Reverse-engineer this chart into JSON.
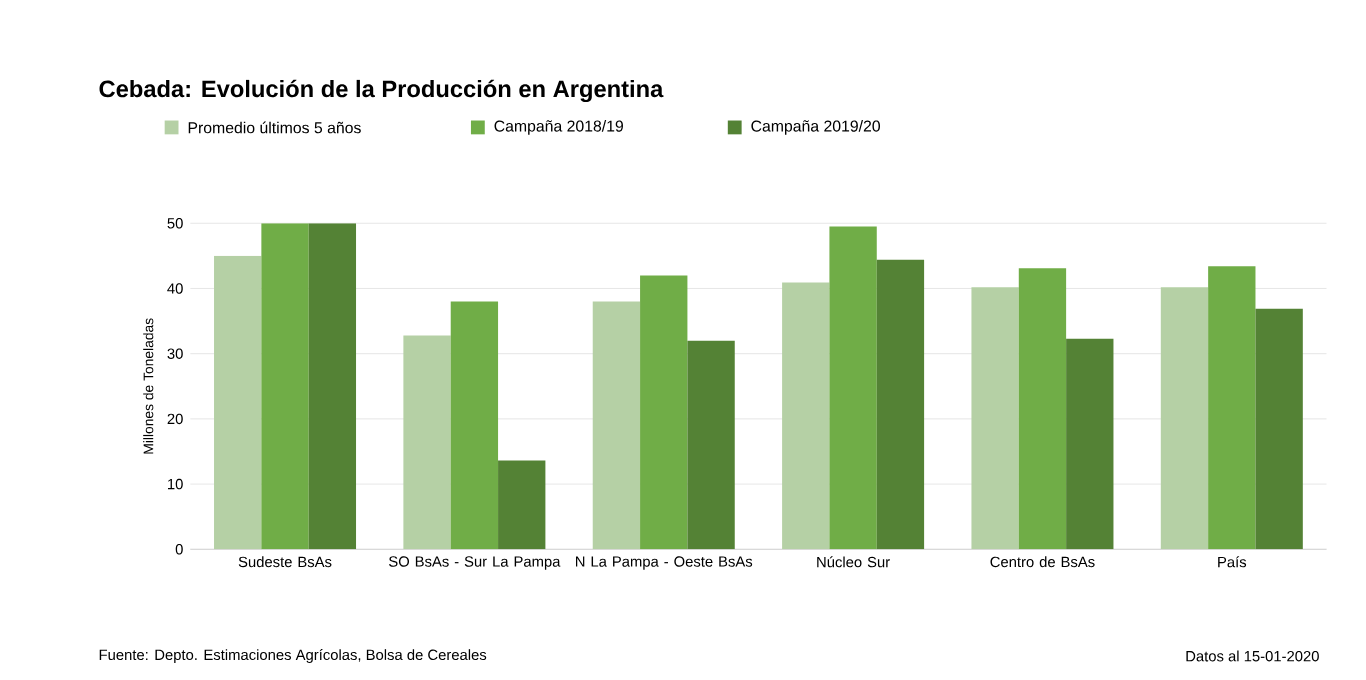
{
  "chart_data": {
    "type": "bar",
    "title": "Cebada: Evolución de la Producción en Argentina",
    "categories": [
      "Sudeste BsAs",
      "SO BsAs - Sur La Pampa",
      "N La Pampa - Oeste BsAs",
      "Núcleo Sur",
      "Centro de BsAs",
      "País"
    ],
    "series": [
      {
        "name": "Promedio últimos 5 años",
        "color": "#b5d0a5",
        "values": [
          45,
          32.8,
          38,
          40.9,
          40.2,
          40.2
        ]
      },
      {
        "name": "Campaña 2018/19",
        "color": "#70ad47",
        "values": [
          50,
          38,
          42,
          49.5,
          43.1,
          43.4
        ]
      },
      {
        "name": "Campaña 2019/20",
        "color": "#548235",
        "values": [
          50,
          13.6,
          32,
          44.4,
          32.3,
          36.9
        ]
      }
    ],
    "ylabel": "Millones de Toneladas",
    "ylim": [
      0,
      50
    ],
    "yticks": [
      0,
      10,
      20,
      30,
      40,
      50
    ],
    "grid": "y",
    "legend": "top left",
    "annotations": [
      "Fuente: Depto. Estimaciones Agrícolas, Bolsa de Cereales",
      "Datos al 15-01-2020"
    ]
  }
}
